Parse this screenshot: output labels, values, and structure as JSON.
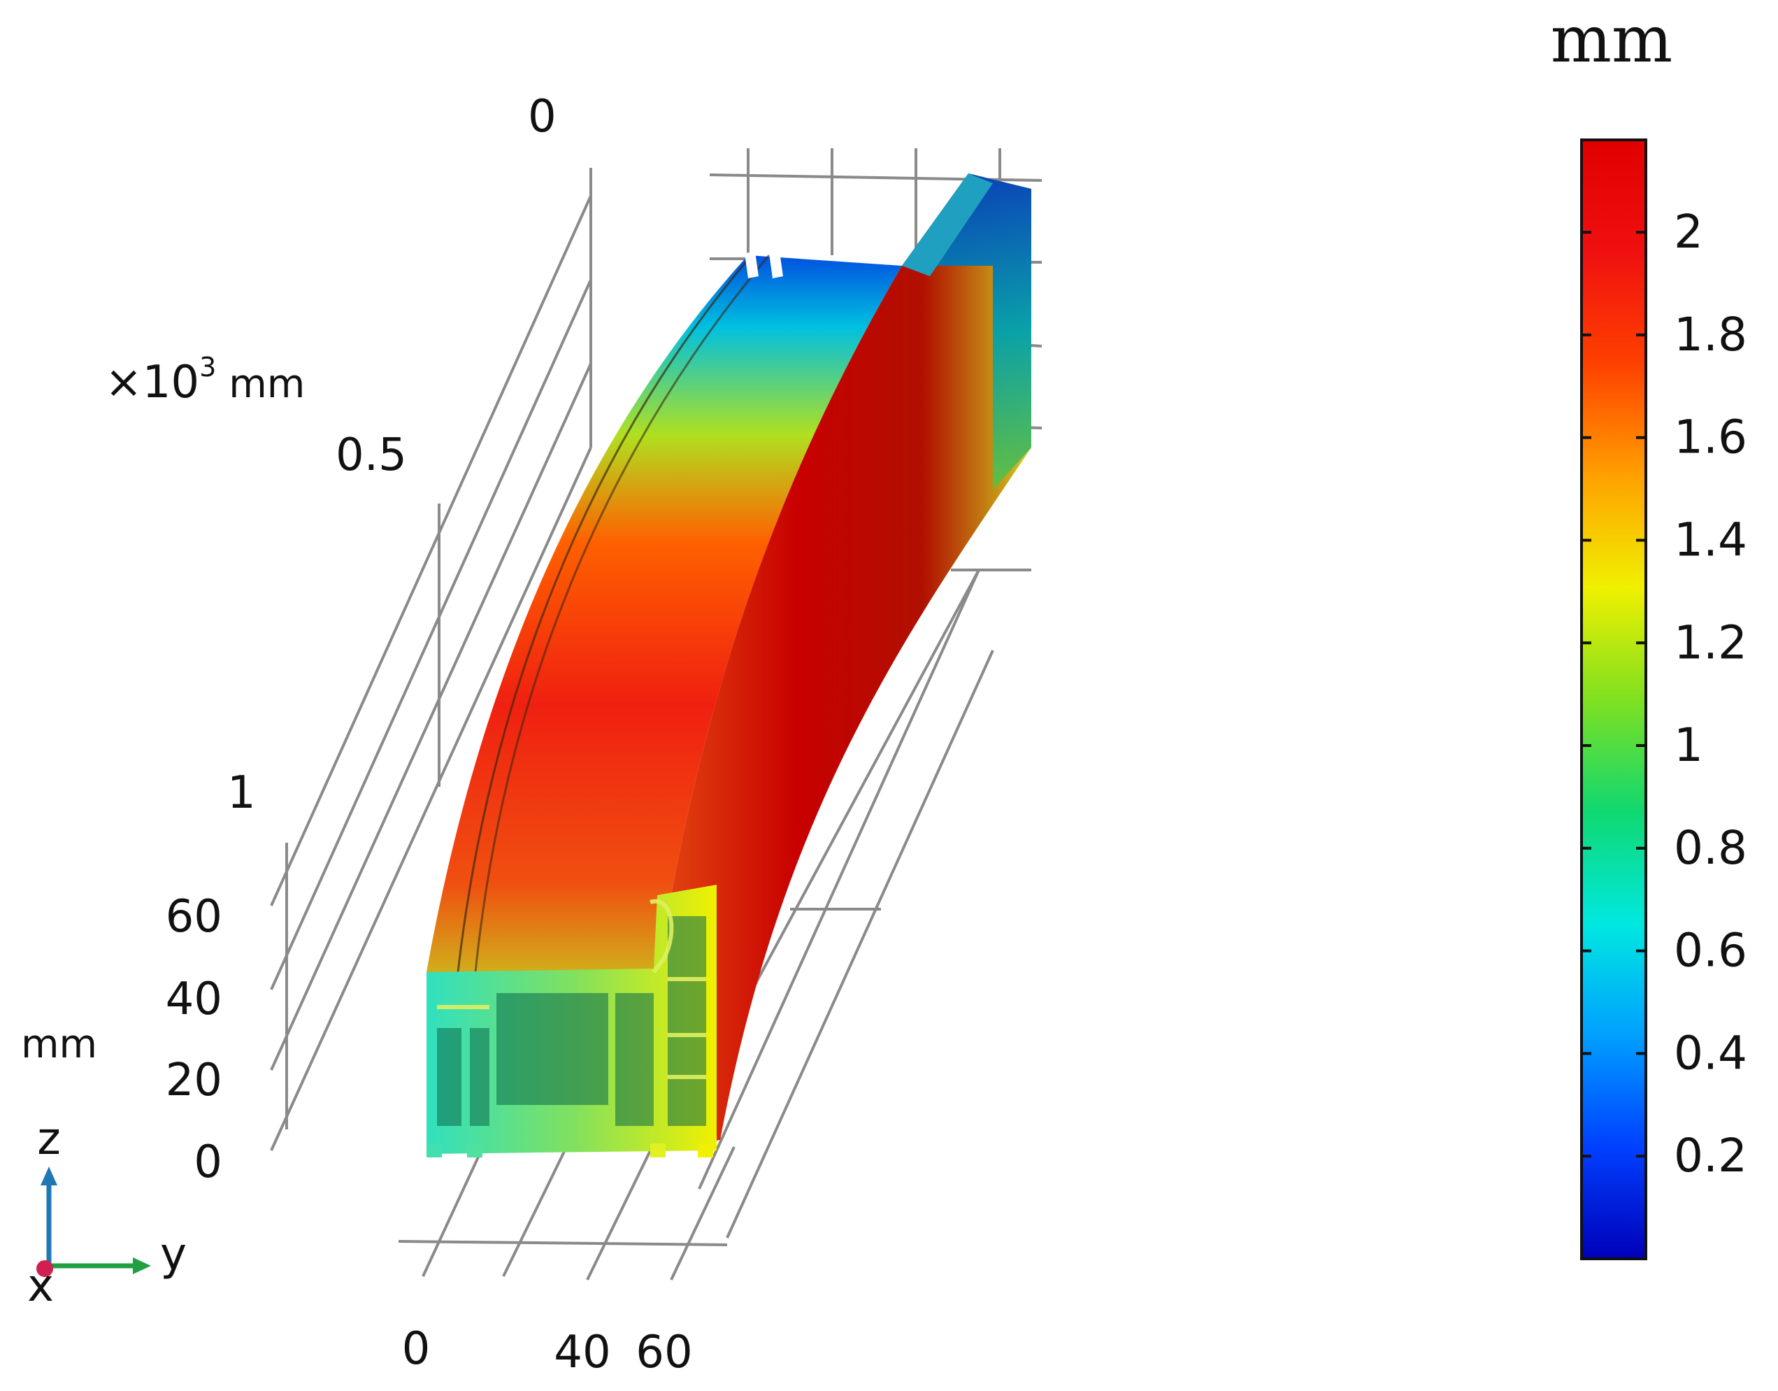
{
  "colorbar": {
    "unit": "mm",
    "ticks": [
      "2",
      "1.8",
      "1.6",
      "1.4",
      "1.2",
      "1",
      "0.8",
      "0.6",
      "0.4",
      "0.2"
    ],
    "tick_values": [
      2,
      1.8,
      1.6,
      1.4,
      1.2,
      1,
      0.8,
      0.6,
      0.4,
      0.2
    ],
    "min": 0.0,
    "max": 2.18,
    "colormap": [
      "#0000b8",
      "#0040ff",
      "#00a0ff",
      "#00e8e0",
      "#10d870",
      "#80e020",
      "#f0f000",
      "#ffa000",
      "#ff4000",
      "#f01010",
      "#e00000"
    ]
  },
  "axes": {
    "x_scale_label": "×10",
    "x_scale_exp": "3",
    "x_scale_unit": "mm",
    "x_ticks": [
      "0",
      "0.5",
      "1"
    ],
    "z_unit": "mm",
    "z_ticks": [
      "60",
      "40",
      "20",
      "0"
    ],
    "y_ticks": [
      "0",
      "40",
      "60"
    ]
  },
  "triad": {
    "z": "z",
    "y": "y",
    "x": "x",
    "z_color": "#1f77b4",
    "y_color": "#20a040",
    "x_color": "#d02050"
  }
}
